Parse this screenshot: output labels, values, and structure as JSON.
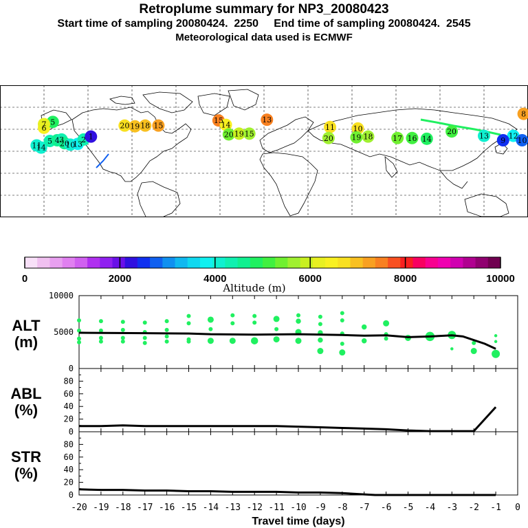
{
  "header": {
    "title": "Retroplume summary for NP3_20080423",
    "start_label": "Start time of sampling 20080424.  2250",
    "end_label": "End time of sampling 20080424.  2545",
    "met_label": "Meteorological data used is ECMWF"
  },
  "colorbar": {
    "label": "Altitude (m)",
    "tick_labels": [
      "0",
      "2000",
      "4000",
      "6000",
      "8000",
      "10000"
    ],
    "tick_values": [
      0,
      2000,
      4000,
      6000,
      8000,
      10000
    ],
    "colors": [
      "#f8e0f8",
      "#f0c0f0",
      "#e8a0f0",
      "#e080f0",
      "#d060f0",
      "#b030f0",
      "#9020f0",
      "#6a10e8",
      "#3010e0",
      "#1030f0",
      "#1060f0",
      "#1090f0",
      "#10b8f0",
      "#10d8f0",
      "#10f0f0",
      "#10f0d0",
      "#10f0b0",
      "#10f090",
      "#20f060",
      "#40f040",
      "#70f030",
      "#a0f030",
      "#c8f020",
      "#e8f020",
      "#f8f020",
      "#f8e020",
      "#f8c020",
      "#f8a020",
      "#f88020",
      "#f85020",
      "#f82020",
      "#f80060",
      "#f80090",
      "#f000b0",
      "#d000b0",
      "#b00090",
      "#900070",
      "#700050"
    ]
  },
  "map_labels": [
    {
      "lon": -155,
      "lat": 8,
      "text": "11",
      "alt": 4200
    },
    {
      "lon": -152,
      "lat": 5,
      "text": "14",
      "alt": 4000
    },
    {
      "lon": -146,
      "lat": 14,
      "text": "5",
      "alt": 4400
    },
    {
      "lon": -141,
      "lat": 15,
      "text": "4",
      "alt": 4500
    },
    {
      "lon": -138,
      "lat": 16,
      "text": "3",
      "alt": 4300
    },
    {
      "lon": -136,
      "lat": 11,
      "text": "20",
      "alt": 4700
    },
    {
      "lon": -132,
      "lat": 9,
      "text": "10",
      "alt": 4100
    },
    {
      "lon": -127,
      "lat": 10,
      "text": "13",
      "alt": 3900
    },
    {
      "lon": -123,
      "lat": 16,
      "text": "2",
      "alt": 4400
    },
    {
      "lon": -118,
      "lat": 20,
      "text": "1",
      "alt": 2200
    },
    {
      "lon": -150,
      "lat": 32,
      "text": "6",
      "alt": 6500
    },
    {
      "lon": -144,
      "lat": 40,
      "text": "5",
      "alt": 4800
    },
    {
      "lon": -150,
      "lat": 37,
      "text": "7",
      "alt": 6200
    },
    {
      "lon": -95,
      "lat": 35,
      "text": "20",
      "alt": 6800
    },
    {
      "lon": -88,
      "lat": 34,
      "text": "19",
      "alt": 7000
    },
    {
      "lon": -81,
      "lat": 35,
      "text": "18",
      "alt": 6900
    },
    {
      "lon": -72,
      "lat": 35,
      "text": "15",
      "alt": 7200
    },
    {
      "lon": -31,
      "lat": 42,
      "text": "15",
      "alt": 7400
    },
    {
      "lon": 2,
      "lat": 43,
      "text": "13",
      "alt": 7400
    },
    {
      "lon": -26,
      "lat": 36,
      "text": "14",
      "alt": 6400
    },
    {
      "lon": -24,
      "lat": 23,
      "text": "20",
      "alt": 5500
    },
    {
      "lon": -17,
      "lat": 24,
      "text": "19",
      "alt": 5800
    },
    {
      "lon": -10,
      "lat": 24,
      "text": "15",
      "alt": 5600
    },
    {
      "lon": 45,
      "lat": 33,
      "text": "11",
      "alt": 6700
    },
    {
      "lon": 64,
      "lat": 31,
      "text": "10",
      "alt": 6800
    },
    {
      "lon": 44,
      "lat": 18,
      "text": "20",
      "alt": 5700
    },
    {
      "lon": 63,
      "lat": 19,
      "text": "19",
      "alt": 5500
    },
    {
      "lon": 71,
      "lat": 20,
      "text": "18",
      "alt": 5600
    },
    {
      "lon": 91,
      "lat": 18,
      "text": "17",
      "alt": 5300
    },
    {
      "lon": 101,
      "lat": 18,
      "text": "16",
      "alt": 5000
    },
    {
      "lon": 111,
      "lat": 17,
      "text": "14",
      "alt": 4900
    },
    {
      "lon": 128,
      "lat": 27,
      "text": "20",
      "alt": 5200
    },
    {
      "lon": 150,
      "lat": 21,
      "text": "13",
      "alt": 4000
    },
    {
      "lon": 170,
      "lat": 21,
      "text": "12",
      "alt": 3800
    },
    {
      "lon": 163,
      "lat": 15,
      "text": "9",
      "alt": 2600
    },
    {
      "lon": 176,
      "lat": 15,
      "text": "10",
      "alt": 2800
    },
    {
      "lon": 177,
      "lat": 51,
      "text": "8",
      "alt": 7200
    }
  ],
  "chart_data": [
    {
      "id": "alt",
      "type": "line",
      "title": "ALT",
      "ylabel": "(m)",
      "ylim": [
        0,
        10000
      ],
      "ytick_labels": [
        "10000",
        "5000",
        "0"
      ],
      "ytick_values": [
        10000,
        5000,
        0
      ],
      "xlim": [
        -20,
        0
      ],
      "series": [
        {
          "name": "mean altitude",
          "x": [
            -20,
            -17,
            -15,
            -14,
            -12,
            -10,
            -8,
            -7,
            -6,
            -5,
            -4,
            -3,
            -2.5,
            -2,
            -1.5,
            -1
          ],
          "values": [
            4900,
            4850,
            4800,
            4700,
            4650,
            4700,
            4600,
            4500,
            4550,
            4300,
            4400,
            4550,
            4400,
            3900,
            3400,
            2700
          ]
        }
      ],
      "scatter": [
        {
          "x": -20,
          "y": 6600,
          "s": 4
        },
        {
          "x": -20,
          "y": 5200,
          "s": 4
        },
        {
          "x": -20,
          "y": 4100,
          "s": 4
        },
        {
          "x": -20,
          "y": 3600,
          "s": 4
        },
        {
          "x": -19,
          "y": 6500,
          "s": 4
        },
        {
          "x": -19,
          "y": 5200,
          "s": 4
        },
        {
          "x": -19,
          "y": 4200,
          "s": 4
        },
        {
          "x": -19,
          "y": 3700,
          "s": 4
        },
        {
          "x": -18,
          "y": 6400,
          "s": 4
        },
        {
          "x": -18,
          "y": 5300,
          "s": 4
        },
        {
          "x": -18,
          "y": 4200,
          "s": 4
        },
        {
          "x": -18,
          "y": 3700,
          "s": 4
        },
        {
          "x": -17,
          "y": 6300,
          "s": 4
        },
        {
          "x": -17,
          "y": 5000,
          "s": 4
        },
        {
          "x": -17,
          "y": 4200,
          "s": 4
        },
        {
          "x": -17,
          "y": 3500,
          "s": 4
        },
        {
          "x": -16,
          "y": 6500,
          "s": 4
        },
        {
          "x": -16,
          "y": 5300,
          "s": 4
        },
        {
          "x": -16,
          "y": 4400,
          "s": 4
        },
        {
          "x": -16,
          "y": 3700,
          "s": 4
        },
        {
          "x": -15,
          "y": 7200,
          "s": 4
        },
        {
          "x": -15,
          "y": 6200,
          "s": 4
        },
        {
          "x": -15,
          "y": 4000,
          "s": 4
        },
        {
          "x": -15,
          "y": 3700,
          "s": 4
        },
        {
          "x": -14,
          "y": 6700,
          "s": 6
        },
        {
          "x": -14,
          "y": 5400,
          "s": 4
        },
        {
          "x": -14,
          "y": 3800,
          "s": 6
        },
        {
          "x": -13,
          "y": 7300,
          "s": 4
        },
        {
          "x": -13,
          "y": 6200,
          "s": 4
        },
        {
          "x": -13,
          "y": 3800,
          "s": 6
        },
        {
          "x": -12,
          "y": 7200,
          "s": 4
        },
        {
          "x": -12,
          "y": 6300,
          "s": 4
        },
        {
          "x": -12,
          "y": 3800,
          "s": 7
        },
        {
          "x": -11,
          "y": 6800,
          "s": 6
        },
        {
          "x": -11,
          "y": 5400,
          "s": 4
        },
        {
          "x": -11,
          "y": 4000,
          "s": 6
        },
        {
          "x": -10,
          "y": 7300,
          "s": 4
        },
        {
          "x": -10,
          "y": 6500,
          "s": 5
        },
        {
          "x": -10,
          "y": 5000,
          "s": 6
        },
        {
          "x": -10,
          "y": 3800,
          "s": 6
        },
        {
          "x": -9,
          "y": 7100,
          "s": 4
        },
        {
          "x": -9,
          "y": 6100,
          "s": 4
        },
        {
          "x": -9,
          "y": 4900,
          "s": 5
        },
        {
          "x": -9,
          "y": 3900,
          "s": 5
        },
        {
          "x": -9,
          "y": 2400,
          "s": 6
        },
        {
          "x": -8,
          "y": 7600,
          "s": 4
        },
        {
          "x": -8,
          "y": 6600,
          "s": 4
        },
        {
          "x": -8,
          "y": 4800,
          "s": 4
        },
        {
          "x": -8,
          "y": 3400,
          "s": 4
        },
        {
          "x": -8,
          "y": 2200,
          "s": 6
        },
        {
          "x": -7,
          "y": 5700,
          "s": 5
        },
        {
          "x": -7,
          "y": 3800,
          "s": 5
        },
        {
          "x": -6,
          "y": 6200,
          "s": 6
        },
        {
          "x": -6,
          "y": 4700,
          "s": 4
        },
        {
          "x": -6,
          "y": 4100,
          "s": 4
        },
        {
          "x": -5,
          "y": 4200,
          "s": 6
        },
        {
          "x": -4,
          "y": 4400,
          "s": 9
        },
        {
          "x": -3,
          "y": 4600,
          "s": 8
        },
        {
          "x": -3,
          "y": 2700,
          "s": 3
        },
        {
          "x": -2,
          "y": 3500,
          "s": 4
        },
        {
          "x": -2,
          "y": 2400,
          "s": 6
        },
        {
          "x": -1,
          "y": 4500,
          "s": 3
        },
        {
          "x": -1,
          "y": 3700,
          "s": 3
        },
        {
          "x": -1,
          "y": 2000,
          "s": 8
        }
      ]
    },
    {
      "id": "abl",
      "type": "line",
      "title": "ABL",
      "ylabel": "(%)",
      "ylim": [
        0,
        100
      ],
      "ytick_labels": [
        "80",
        "60",
        "40",
        "20",
        "0"
      ],
      "ytick_values": [
        80,
        60,
        40,
        20,
        0
      ],
      "xlim": [
        -20,
        0
      ],
      "series": [
        {
          "name": "boundary layer fraction",
          "x": [
            -20,
            -19,
            -18,
            -17,
            -16,
            -15,
            -14,
            -13,
            -12,
            -11,
            -10,
            -9,
            -8,
            -7,
            -6,
            -5,
            -4,
            -3,
            -2,
            -1
          ],
          "values": [
            9,
            9,
            10,
            9,
            9,
            9,
            9,
            9,
            9,
            9,
            8,
            7,
            6,
            5,
            4,
            2,
            1,
            1,
            1,
            39
          ]
        }
      ]
    },
    {
      "id": "str",
      "type": "line",
      "title": "STR",
      "ylabel": "(%)",
      "ylim": [
        0,
        100
      ],
      "ytick_labels": [
        "80",
        "60",
        "40",
        "20",
        "0"
      ],
      "ytick_values": [
        80,
        60,
        40,
        20,
        0
      ],
      "xlim": [
        -20,
        0
      ],
      "xlabel": "Travel time (days)",
      "xtick_labels": [
        "-20",
        "-19",
        "-18",
        "-17",
        "-16",
        "-15",
        "-14",
        "-13",
        "-12",
        "-11",
        "-10",
        "-9",
        "-8",
        "-7",
        "-6",
        "-5",
        "-4",
        "-3",
        "-2",
        "-1",
        "0"
      ],
      "xtick_values": [
        -20,
        -19,
        -18,
        -17,
        -16,
        -15,
        -14,
        -13,
        -12,
        -11,
        -10,
        -9,
        -8,
        -7,
        -6,
        -5,
        -4,
        -3,
        -2,
        -1,
        0
      ],
      "series": [
        {
          "name": "stratospheric fraction",
          "x": [
            -20,
            -19,
            -18,
            -17,
            -16,
            -15,
            -14,
            -13,
            -12,
            -11,
            -10,
            -9,
            -8,
            -7,
            -6.5,
            -6,
            -5,
            -4,
            -3,
            -2,
            -1
          ],
          "values": [
            9,
            8,
            8,
            7,
            7,
            6,
            6,
            5,
            5,
            5,
            4,
            4,
            3,
            1,
            0,
            0,
            0,
            0,
            0,
            0,
            0
          ]
        }
      ]
    }
  ]
}
